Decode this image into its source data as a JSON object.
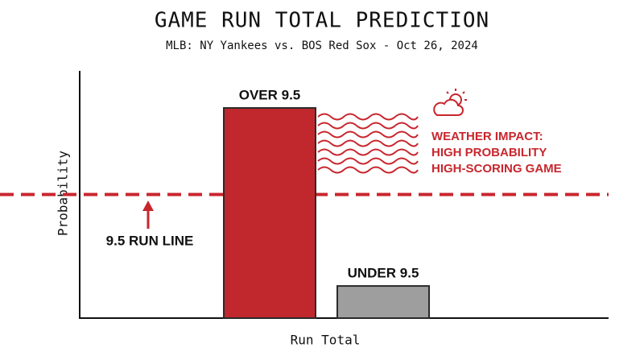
{
  "chart_data": {
    "type": "bar",
    "title": "GAME RUN TOTAL PREDICTION",
    "subtitle": "MLB: NY Yankees vs. BOS Red Sox - Oct 26, 2024",
    "x_label": "Run Total",
    "y_label": "Probability",
    "categories": [
      "OVER 9.5",
      "UNDER 9.5"
    ],
    "values": [
      0.85,
      0.13
    ],
    "colors": [
      "#c0282d",
      "#9e9e9e"
    ],
    "ylim": [
      0,
      1
    ],
    "threshold": {
      "value": 0.5,
      "label": "9.5 RUN LINE",
      "color": "#c8262d"
    },
    "annotation": [
      "WEATHER IMPACT:",
      "HIGH PROBABILITY",
      "HIGH-SCORING GAME"
    ]
  }
}
